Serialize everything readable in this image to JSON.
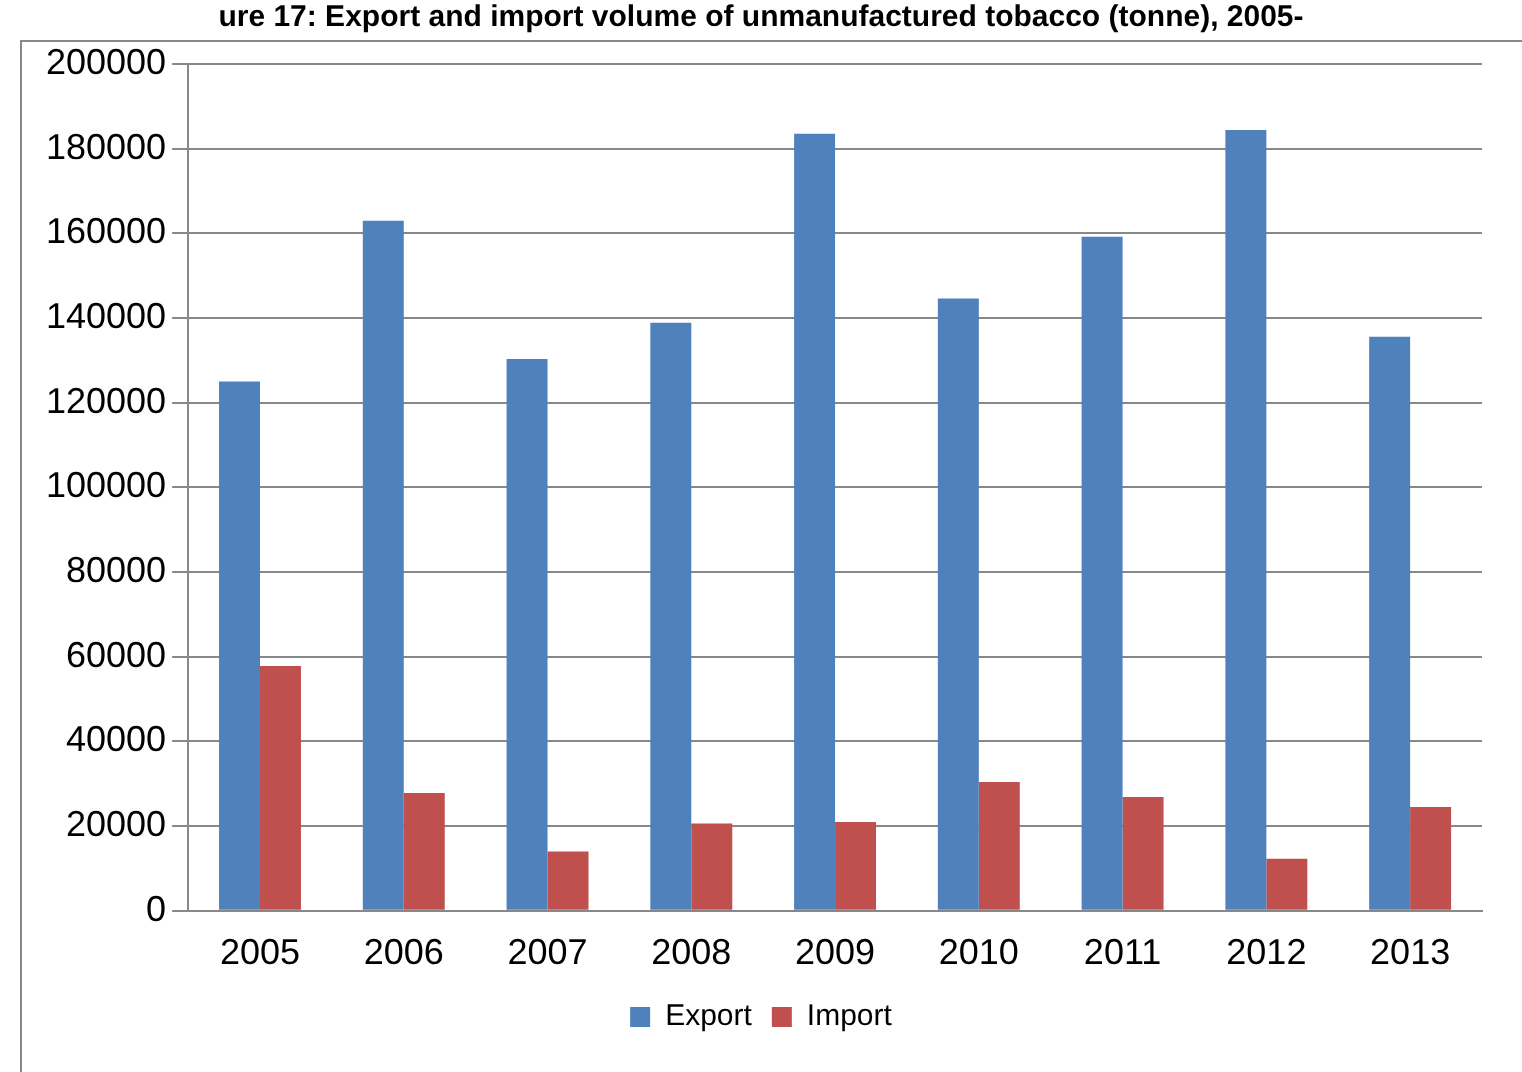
{
  "chart_data": {
    "type": "bar",
    "title": "ure 17: Export and import volume of unmanufactured tobacco (tonne), 2005-",
    "categories": [
      "2005",
      "2006",
      "2007",
      "2008",
      "2009",
      "2010",
      "2011",
      "2012",
      "2013"
    ],
    "series": [
      {
        "name": "Export",
        "color": "#4f81bd",
        "values": [
          125000,
          163000,
          130300,
          138900,
          183500,
          144600,
          159200,
          184400,
          135600
        ]
      },
      {
        "name": "Import",
        "color": "#c0504d",
        "values": [
          57800,
          27800,
          14000,
          20600,
          21000,
          30400,
          26900,
          12300,
          24500
        ]
      }
    ],
    "ylim": [
      0,
      200000
    ],
    "yticks": [
      0,
      20000,
      40000,
      60000,
      80000,
      100000,
      120000,
      140000,
      160000,
      180000,
      200000
    ],
    "grid": "y",
    "legend": "bottom"
  }
}
